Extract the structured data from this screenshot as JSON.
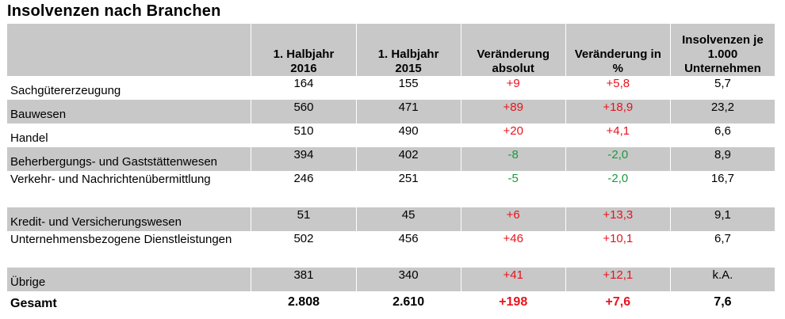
{
  "title": "Insolvenzen nach Branchen",
  "headers": [
    "",
    "1. Halbjahr 2016",
    "1. Halbjahr 2015",
    "Veränderung absolut",
    "Veränderung in %",
    "Insolvenzen je 1.000 Unternehmen"
  ],
  "rows": [
    {
      "label": "Sachgütererzeugung",
      "v2016": "164",
      "v2015": "155",
      "abs": "+9",
      "pct": "+5,8",
      "per1000": "5,7",
      "abs_color": "red",
      "pct_color": "red"
    },
    {
      "label": "Bauwesen",
      "v2016": "560",
      "v2015": "471",
      "abs": "+89",
      "pct": "+18,9",
      "per1000": "23,2",
      "abs_color": "red",
      "pct_color": "red"
    },
    {
      "label": "Handel",
      "v2016": "510",
      "v2015": "490",
      "abs": "+20",
      "pct": "+4,1",
      "per1000": "6,6",
      "abs_color": "red",
      "pct_color": "red"
    },
    {
      "label": "Beherbergungs- und Gaststättenwesen",
      "v2016": "394",
      "v2015": "402",
      "abs": "-8",
      "pct": "-2,0",
      "per1000": "8,9",
      "abs_color": "green",
      "pct_color": "green"
    },
    {
      "label": "Verkehr- und Nachrichtenübermittlung",
      "v2016": "246",
      "v2015": "251",
      "abs": "-5",
      "pct": "-2,0",
      "per1000": "16,7",
      "abs_color": "green",
      "pct_color": "green"
    },
    {
      "label": "Kredit- und Versicherungswesen",
      "v2016": "51",
      "v2015": "45",
      "abs": "+6",
      "pct": "+13,3",
      "per1000": "9,1",
      "abs_color": "red",
      "pct_color": "red"
    },
    {
      "label": "Unternehmensbezogene Dienstleistungen",
      "v2016": "502",
      "v2015": "456",
      "abs": "+46",
      "pct": "+10,1",
      "per1000": "6,7",
      "abs_color": "red",
      "pct_color": "red"
    },
    {
      "label": "Übrige",
      "v2016": "381",
      "v2015": "340",
      "abs": "+41",
      "pct": "+12,1",
      "per1000": "k.A.",
      "abs_color": "red",
      "pct_color": "red"
    }
  ],
  "total": {
    "label": "Gesamt",
    "v2016": "2.808",
    "v2015": "2.610",
    "abs": "+198",
    "pct": "+7,6",
    "per1000": "7,6",
    "abs_color": "red",
    "pct_color": "red"
  },
  "colors": {
    "red": "#e8121c",
    "green": "#1a9a3c",
    "shade": "#c8c8c8"
  }
}
